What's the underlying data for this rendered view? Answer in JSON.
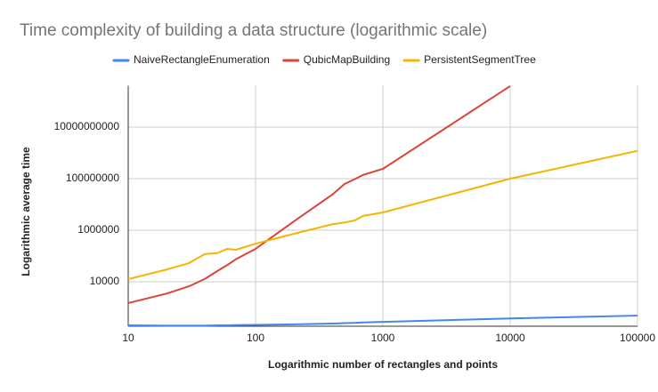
{
  "chart_data": {
    "type": "line",
    "title": "Time complexity of building a data structure (logarithmic scale)",
    "x_label": "Logarithmic number of rectangles and points",
    "y_label": "Logarithmic average time",
    "x": [
      10,
      20,
      30,
      40,
      50,
      60,
      70,
      100,
      200,
      400,
      500,
      600,
      700,
      1000,
      10000,
      100000
    ],
    "series": [
      {
        "name": "NaiveRectangleEnumeration",
        "color": "#4285f4",
        "values": [
          205,
          200,
          200,
          200,
          205,
          205,
          210,
          215,
          225,
          240,
          250,
          255,
          265,
          280,
          380,
          490
        ]
      },
      {
        "name": "QubicMapBuilding",
        "color": "#db4437",
        "values": [
          1500,
          3500,
          6700,
          13000,
          26000,
          45000,
          75000,
          190000,
          2200000,
          24000000,
          62000000,
          95000000,
          140000000,
          240000000,
          390000000000,
          null
        ]
      },
      {
        "name": "PersistentSegmentTree",
        "color": "#f4b400",
        "values": [
          12700,
          30000,
          53000,
          120000,
          130000,
          190000,
          175000,
          300000,
          730000,
          1700000,
          2000000,
          2400000,
          3600000,
          4900000,
          100000000,
          1200000000
        ]
      }
    ],
    "xlim": [
      10,
      100000
    ],
    "ylim": [
      190,
      400000000000
    ],
    "xticks": [
      10,
      100,
      1000,
      10000,
      100000
    ],
    "yticks": [
      10000,
      1000000,
      100000000,
      10000000000
    ],
    "x_log": true,
    "y_log": true,
    "grid": true,
    "legend": "top"
  }
}
